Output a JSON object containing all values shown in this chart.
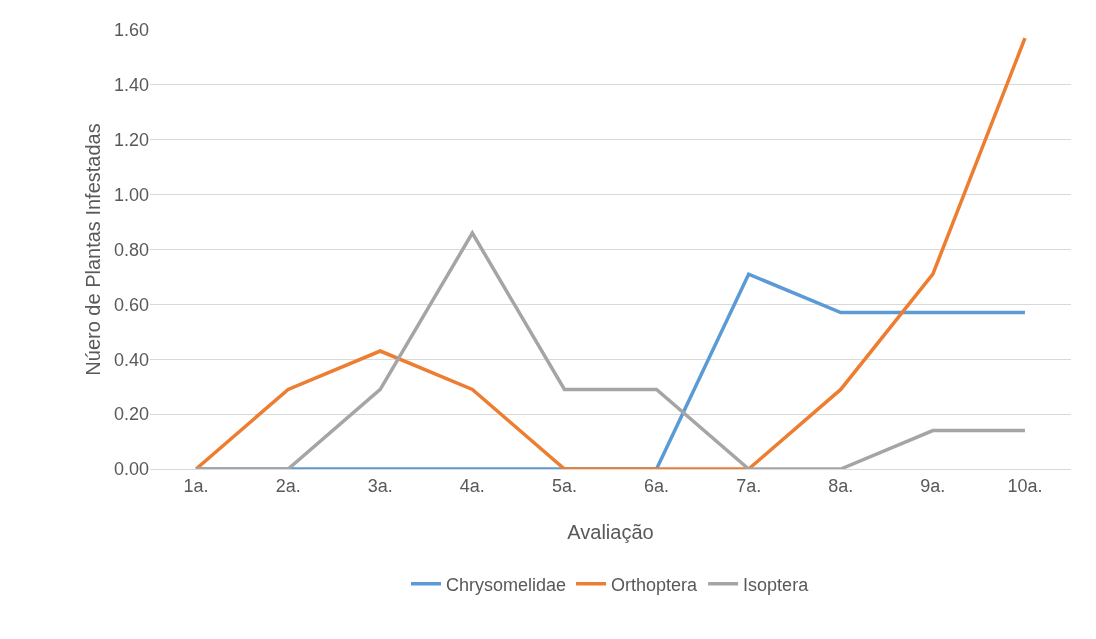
{
  "chart_data": {
    "type": "line",
    "xlabel": "Avaliação",
    "ylabel": "Núero de Plantas Infestadas",
    "categories": [
      "1a.",
      "2a.",
      "3a.",
      "4a.",
      "5a.",
      "6a.",
      "7a.",
      "8a.",
      "9a.",
      "10a."
    ],
    "series": [
      {
        "name": "Chrysomelidae",
        "color": "#5b9bd5",
        "values": [
          0,
          0,
          0,
          0,
          0,
          0,
          0.71,
          0.57,
          0.57,
          0.57
        ]
      },
      {
        "name": "Orthoptera",
        "color": "#ed7d31",
        "values": [
          0,
          0.29,
          0.43,
          0.29,
          0,
          0,
          0,
          0.29,
          0.71,
          1.57
        ]
      },
      {
        "name": "Isoptera",
        "color": "#a5a5a5",
        "values": [
          0,
          0,
          0.29,
          0.86,
          0.29,
          0.29,
          0,
          0,
          0.14,
          0.14
        ]
      }
    ],
    "ylim": [
      0,
      1.6
    ],
    "yticks": [
      {
        "value": 0,
        "label": "0.00"
      },
      {
        "value": 0.2,
        "label": "0.20"
      },
      {
        "value": 0.4,
        "label": "0.40"
      },
      {
        "value": 0.6,
        "label": "0.60"
      },
      {
        "value": 0.8,
        "label": "0.80"
      },
      {
        "value": 1,
        "label": "1.00"
      },
      {
        "value": 1.2,
        "label": "1.20"
      },
      {
        "value": 1.4,
        "label": "1.40"
      },
      {
        "value": 1.6,
        "label": "1.60"
      }
    ],
    "grid": "y",
    "legend": "bottom",
    "marker": "none",
    "line_style": "solid"
  }
}
